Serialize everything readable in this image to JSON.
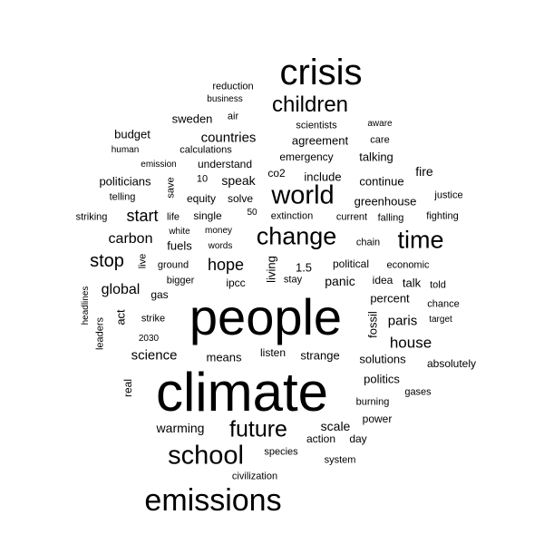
{
  "words": [
    "people",
    "climate",
    "crisis",
    "emissions",
    "children",
    "world",
    "change",
    "time",
    "school",
    "future",
    "start",
    "stop",
    "carbon",
    "hope",
    "global",
    "house",
    "paris",
    "science",
    "countries",
    "agreement",
    "sweden",
    "budget",
    "politicians",
    "understand",
    "emergency",
    "talking",
    "include",
    "continue",
    "greenhouse",
    "speak",
    "fire",
    "fuels",
    "panic",
    "percent",
    "solutions",
    "politics",
    "means",
    "warming",
    "scale",
    "listen",
    "strange",
    "reduction",
    "business",
    "air",
    "scientists",
    "aware",
    "care",
    "human",
    "calculations",
    "emission",
    "10",
    "co2",
    "telling",
    "save",
    "equity",
    "solve",
    "justice",
    "striking",
    "life",
    "single",
    "50",
    "extinction",
    "current",
    "falling",
    "fighting",
    "white",
    "money",
    "words",
    "chain",
    "live",
    "ground",
    "living",
    "1.5",
    "political",
    "economic",
    "bigger",
    "ipcc",
    "stay",
    "idea",
    "talk",
    "told",
    "gas",
    "headlines",
    "act",
    "leaders",
    "2030",
    "strike",
    "fossil",
    "chance",
    "target",
    "absolutely",
    "real",
    "burning",
    "gases",
    "power",
    "action",
    "day",
    "species",
    "system",
    "civilization"
  ],
  "colors": {
    "background": "#ffffff",
    "text": "#000000"
  }
}
